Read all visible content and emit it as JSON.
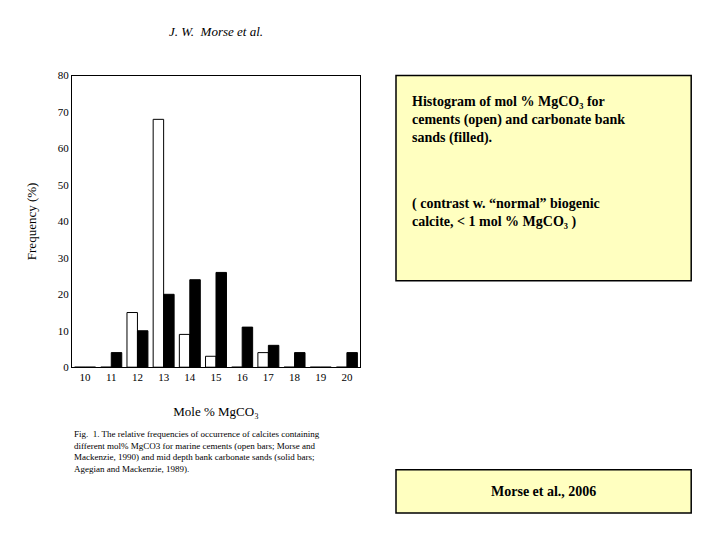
{
  "chart_data": {
    "type": "bar",
    "title": "J. W.  Morse et al.",
    "x": [
      10,
      11,
      12,
      13,
      14,
      15,
      16,
      17,
      18,
      19,
      20
    ],
    "series": [
      {
        "color": "white",
        "values": [
          0,
          0,
          15,
          68,
          9,
          3,
          0,
          4,
          0,
          0,
          0
        ]
      },
      {
        "color": "black",
        "values": [
          0,
          4,
          10,
          20,
          24,
          26,
          11,
          6,
          4,
          0,
          4
        ]
      }
    ],
    "xlabel": "Mole % MgCO₃",
    "ylabel": "Frequency (%)",
    "xlim": [
      9.5,
      20.5
    ],
    "xticks": [
      10,
      11,
      12,
      13,
      14,
      15,
      16,
      17,
      18,
      19,
      20
    ],
    "ylim": [
      0,
      80
    ],
    "yticks": [
      0,
      10,
      20,
      30,
      40,
      50,
      60,
      70,
      80
    ],
    "grid": false,
    "annotations": [
      "Histogram of mol % MgCO₃ for\ncements (open) and carbonate bank\nsands (filled).",
      "( contrast w. “normal” biogenic\ncalcite, < 1 mol % MgCO₃ )",
      "Morse et al., 2006",
      "Fig.  1. The relative frequencies of occurrence of calcites containing\ndifferent mol% MgCO3 for marine cements (open bars; Morse and\nMackenzie, 1990) and mid depth bank carbonate sands (solid bars;\nAgegian and Mackenzie, 1989)."
    ]
  }
}
